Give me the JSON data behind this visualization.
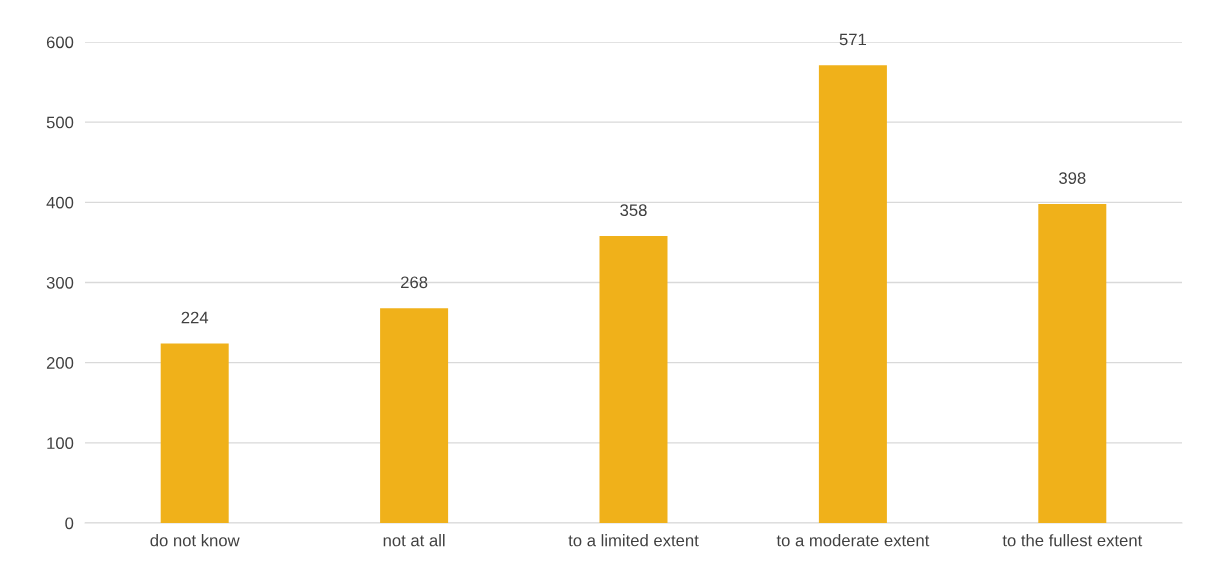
{
  "chart_data": {
    "type": "bar",
    "categories": [
      "do not know",
      "not at all",
      "to a limited extent",
      "to a moderate extent",
      "to the fullest extent"
    ],
    "values": [
      224,
      268,
      358,
      571,
      398
    ],
    "color": "#f0b11a",
    "ylim": [
      0,
      600
    ],
    "yticks": [
      0,
      100,
      200,
      300,
      400,
      500,
      600
    ],
    "grid": "y",
    "data_labels": true
  }
}
